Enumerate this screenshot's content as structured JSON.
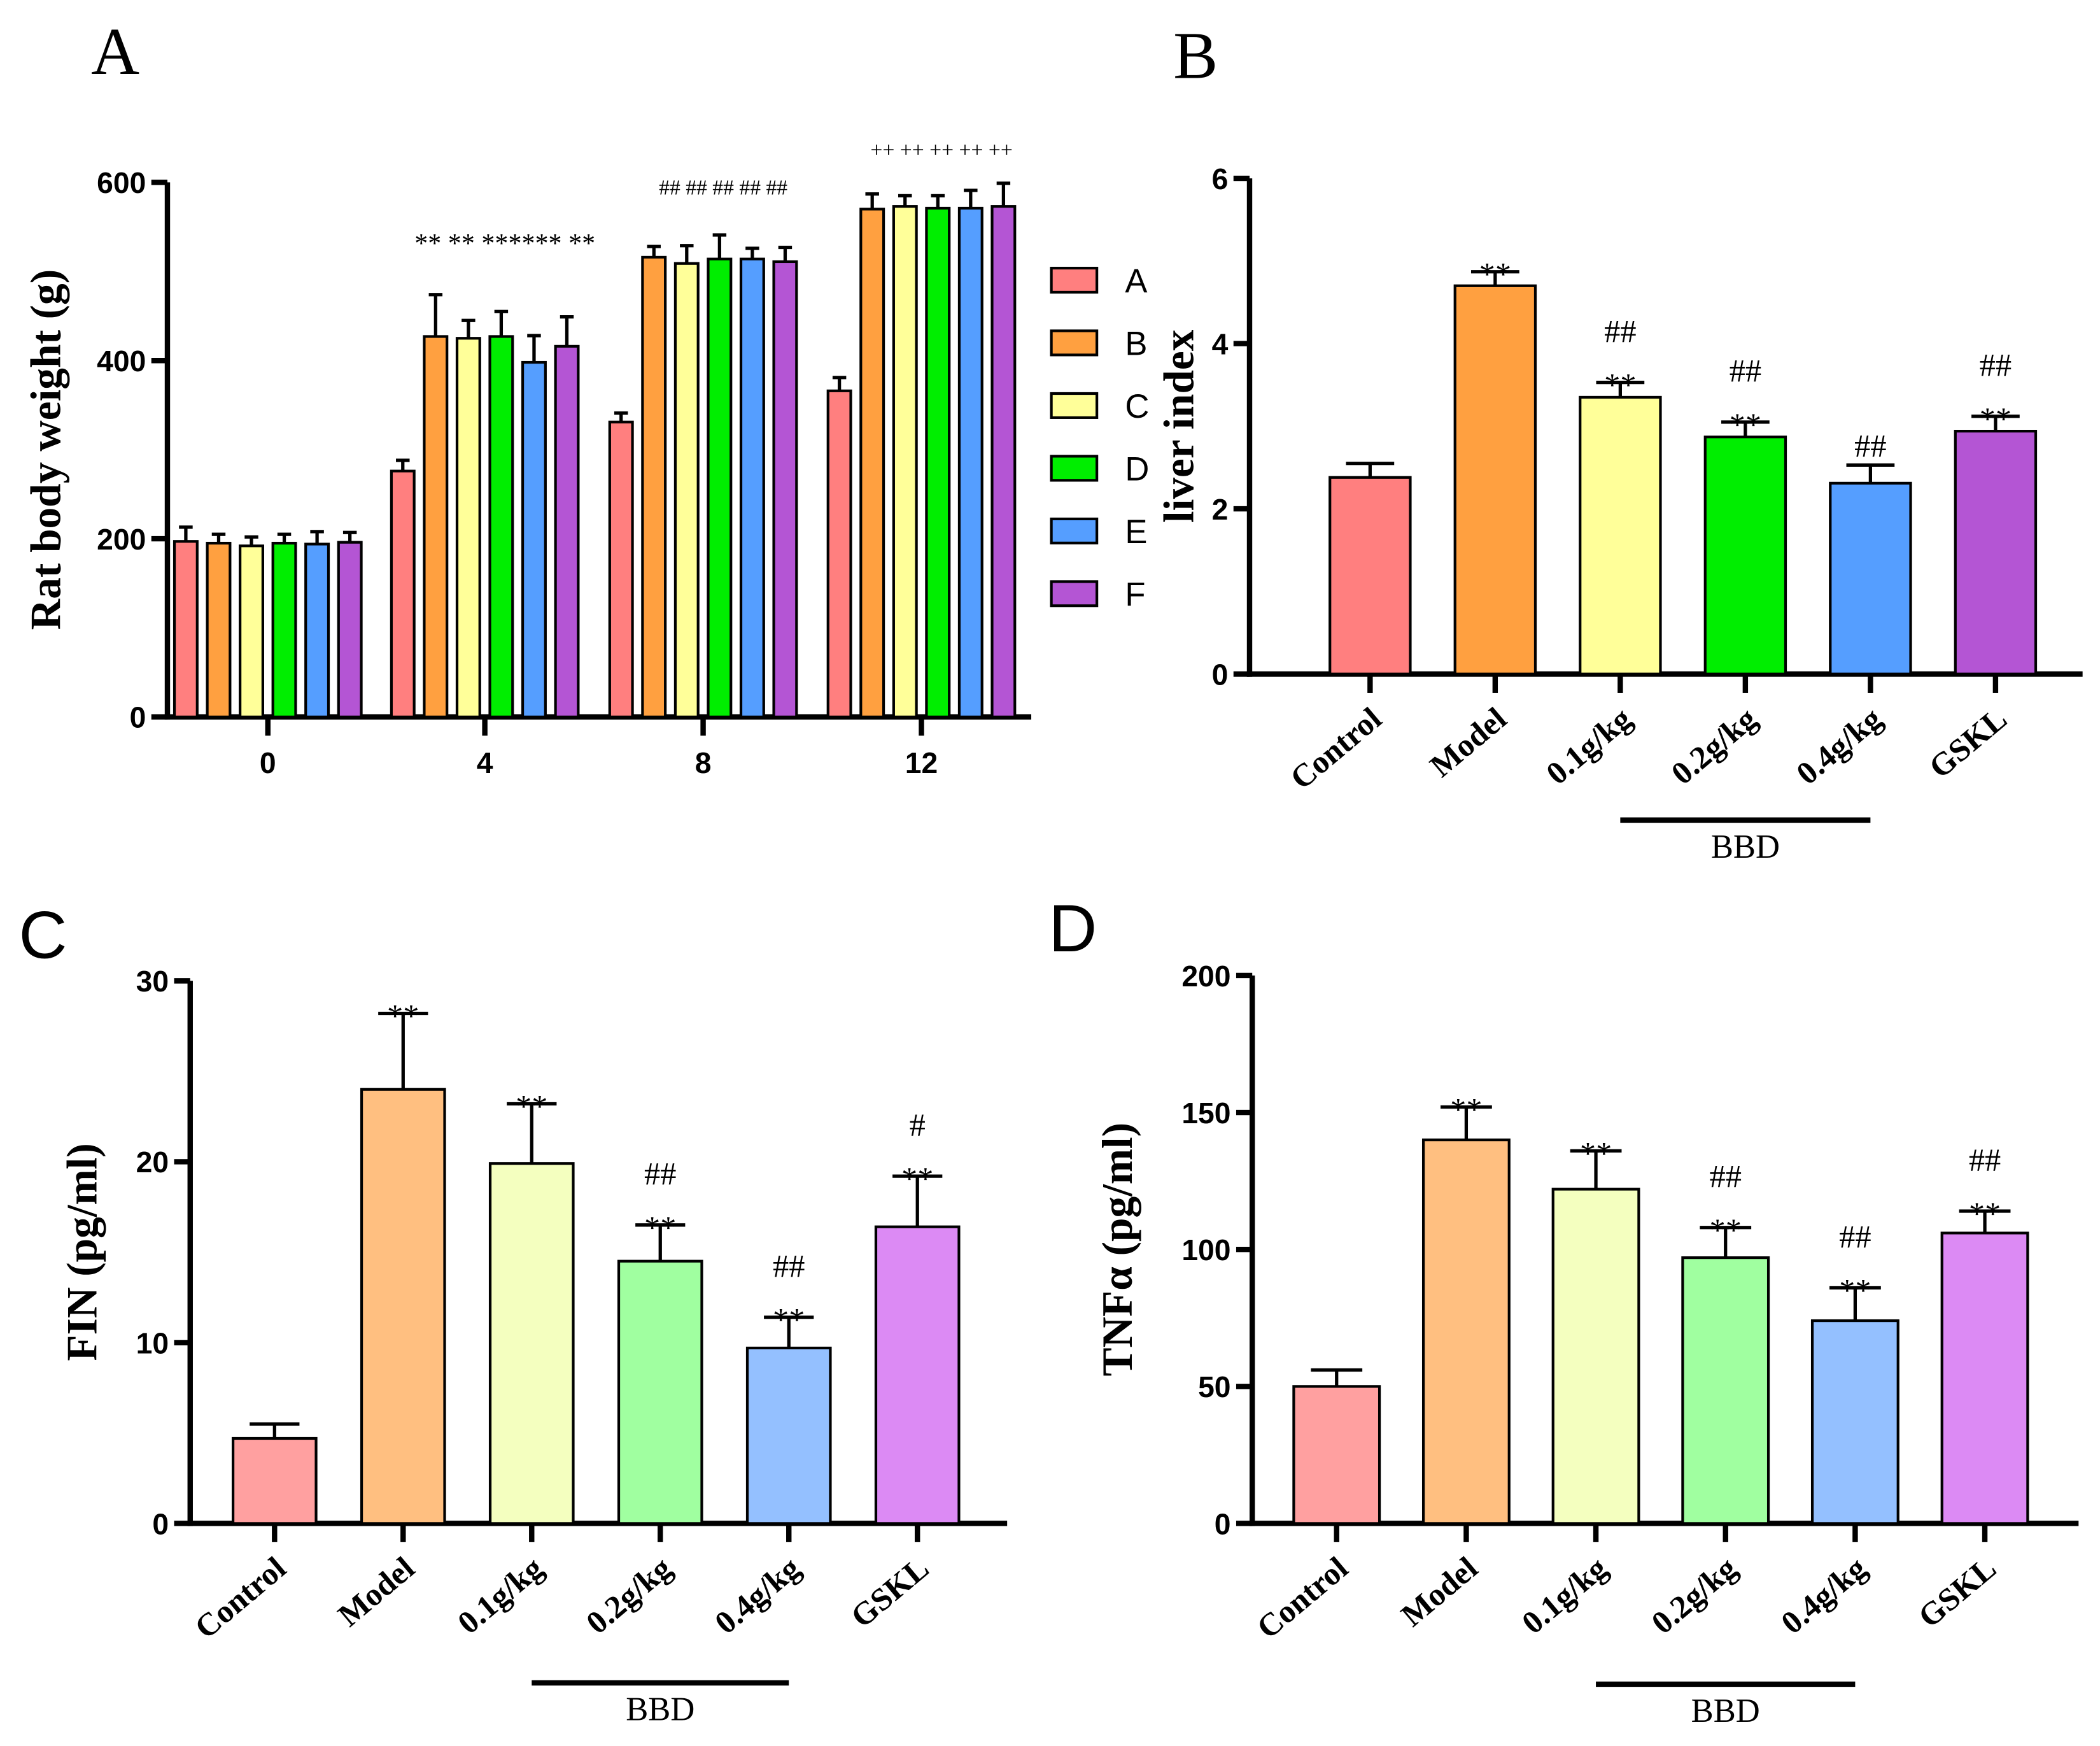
{
  "chart_data": [
    {
      "panel": "A",
      "type": "bar",
      "ylabel": "Rat body weight (g)",
      "xlabel": "",
      "ylim": [
        0,
        600
      ],
      "yticks": [
        0,
        200,
        400,
        600
      ],
      "categories": [
        "0",
        "4",
        "8",
        "12"
      ],
      "legend": {
        "placement": "right"
      },
      "series": [
        {
          "name": "A",
          "color": "#FF7F7F",
          "values": [
            197,
            276,
            331,
            366
          ],
          "errors": [
            16,
            12,
            10,
            15
          ]
        },
        {
          "name": "B",
          "color": "#FFA040",
          "values": [
            195,
            427,
            516,
            570
          ],
          "errors": [
            10,
            47,
            12,
            17
          ]
        },
        {
          "name": "C",
          "color": "#FFFF99",
          "values": [
            192,
            425,
            509,
            573
          ],
          "errors": [
            10,
            20,
            20,
            12
          ]
        },
        {
          "name": "D",
          "color": "#00EE00",
          "values": [
            195,
            427,
            514,
            571
          ],
          "errors": [
            10,
            28,
            27,
            14
          ]
        },
        {
          "name": "E",
          "color": "#559EFF",
          "values": [
            194,
            398,
            514,
            571
          ],
          "errors": [
            14,
            30,
            12,
            20
          ]
        },
        {
          "name": "F",
          "color": "#B455D4",
          "values": [
            196,
            416,
            511,
            573
          ],
          "errors": [
            11,
            33,
            16,
            26
          ]
        }
      ],
      "annotations": [
        {
          "category": "4",
          "text": "** ** ****** **"
        },
        {
          "category": "8",
          "text": "## ## ## ## ##"
        },
        {
          "category": "12",
          "text": "++ ++ ++ ++ ++"
        }
      ]
    },
    {
      "panel": "B",
      "type": "bar",
      "ylabel": "liver index",
      "ylim": [
        0,
        6
      ],
      "yticks": [
        0,
        2,
        4,
        6
      ],
      "categories": [
        "Control",
        "Model",
        "0.1g/kg",
        "0.2g/kg",
        "0.4g/kg",
        "GSKL"
      ],
      "group_label": "BBD",
      "values": [
        2.38,
        4.7,
        3.35,
        2.87,
        2.31,
        2.94
      ],
      "errors": [
        0.17,
        0.17,
        0.18,
        0.18,
        0.22,
        0.18
      ],
      "colors": [
        "#FF7F7F",
        "#FFA040",
        "#FFFF99",
        "#00EE00",
        "#559EFF",
        "#B455D4"
      ],
      "annotations": [
        [],
        [
          "**"
        ],
        [
          "##",
          "**"
        ],
        [
          "##",
          "**"
        ],
        [
          "##"
        ],
        [
          "##",
          "**"
        ]
      ]
    },
    {
      "panel": "C",
      "type": "bar",
      "ylabel": "FIN (pg/ml)",
      "ylim": [
        0,
        30
      ],
      "yticks": [
        0,
        10,
        20,
        30
      ],
      "categories": [
        "Control",
        "Model",
        "0.1g/kg",
        "0.2g/kg",
        "0.4g/kg",
        "GSKL"
      ],
      "group_label": "BBD",
      "values": [
        4.7,
        24.0,
        19.9,
        14.5,
        9.7,
        16.4
      ],
      "errors": [
        0.8,
        4.2,
        3.3,
        2.0,
        1.7,
        2.8
      ],
      "colors": [
        "#FFA0A0",
        "#FFBF80",
        "#F4FFBF",
        "#A0FFA0",
        "#94C0FF",
        "#DC8AF4"
      ],
      "annotations": [
        [],
        [
          "**"
        ],
        [
          "**"
        ],
        [
          "##",
          "**"
        ],
        [
          "##",
          "**"
        ],
        [
          "#",
          "**"
        ]
      ]
    },
    {
      "panel": "D",
      "type": "bar",
      "ylabel": "TNFα (pg/ml)",
      "ylim": [
        0,
        200
      ],
      "yticks": [
        0,
        50,
        100,
        150,
        200
      ],
      "categories": [
        "Control",
        "Model",
        "0.1g/kg",
        "0.2g/kg",
        "0.4g/kg",
        "GSKL"
      ],
      "group_label": "BBD",
      "values": [
        50,
        140,
        122,
        97,
        74,
        106
      ],
      "errors": [
        6,
        12,
        14,
        11,
        12,
        8
      ],
      "colors": [
        "#FFA0A0",
        "#FFBF80",
        "#F4FFBF",
        "#A0FFA0",
        "#94C0FF",
        "#DC8AF4"
      ],
      "annotations": [
        [],
        [
          "**"
        ],
        [
          "**"
        ],
        [
          "##",
          "**"
        ],
        [
          "##",
          "**"
        ],
        [
          "##",
          "**"
        ]
      ]
    }
  ]
}
